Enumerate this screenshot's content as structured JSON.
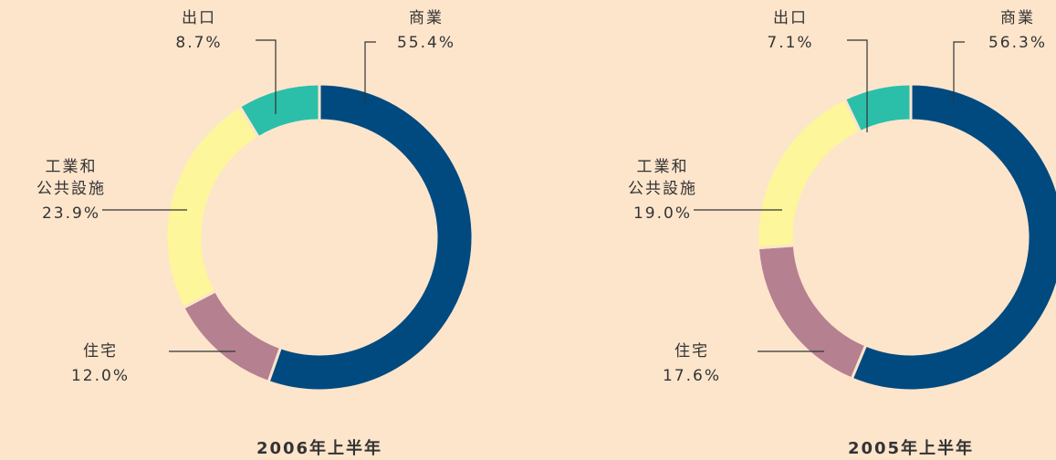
{
  "chart_data": [
    {
      "type": "pie",
      "donut": true,
      "title": "2006年上半年",
      "categories": [
        "商業",
        "住宅",
        "工業和公共設施",
        "出口"
      ],
      "values": [
        55.4,
        12.0,
        23.9,
        8.7
      ],
      "value_labels": [
        "55.4%",
        "12.0%",
        "23.9%",
        "8.7%"
      ],
      "colors": [
        "#004a80",
        "#b58090",
        "#fdf69a",
        "#2bbfaa"
      ]
    },
    {
      "type": "pie",
      "donut": true,
      "title": "2005年上半年",
      "categories": [
        "商業",
        "住宅",
        "工業和公共設施",
        "出口"
      ],
      "values": [
        56.3,
        17.6,
        19.0,
        7.1
      ],
      "value_labels": [
        "56.3%",
        "17.6%",
        "19.0%",
        "7.1%"
      ],
      "colors": [
        "#004a80",
        "#b58090",
        "#fdf69a",
        "#2bbfaa"
      ]
    }
  ]
}
